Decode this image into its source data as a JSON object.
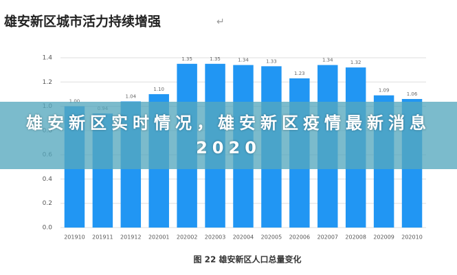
{
  "header": {
    "title": "雄安新区城市活力持续增强"
  },
  "chart_data": {
    "type": "bar",
    "categories": [
      "201910",
      "201911",
      "201912",
      "202001",
      "202002",
      "202003",
      "202004",
      "202005",
      "202006",
      "202007",
      "202008",
      "202009",
      "202010"
    ],
    "values": [
      1.0,
      0.94,
      1.04,
      1.1,
      1.35,
      1.35,
      1.34,
      1.33,
      1.23,
      1.34,
      1.32,
      1.09,
      1.06
    ],
    "value_labels": [
      "1.00",
      "0.94",
      "1.04",
      "1.10",
      "1.35",
      "1.35",
      "1.34",
      "1.33",
      "1.23",
      "1.34",
      "1.32",
      "1.09",
      "1.06"
    ],
    "color": "#2196f3",
    "ylim": [
      0,
      1.4
    ],
    "yticks": [
      {
        "value": 0,
        "label": "0.0"
      },
      0.2,
      0.4,
      0.6,
      0.8,
      {
        "value": 1,
        "label": "1.0"
      },
      1.2,
      1.4
    ],
    "grid": true,
    "caption": "图 22 雄安新区人口总量变化"
  },
  "banner": {
    "title": "雄安新区实时情况，雄安新区疫情最新消息2020"
  }
}
